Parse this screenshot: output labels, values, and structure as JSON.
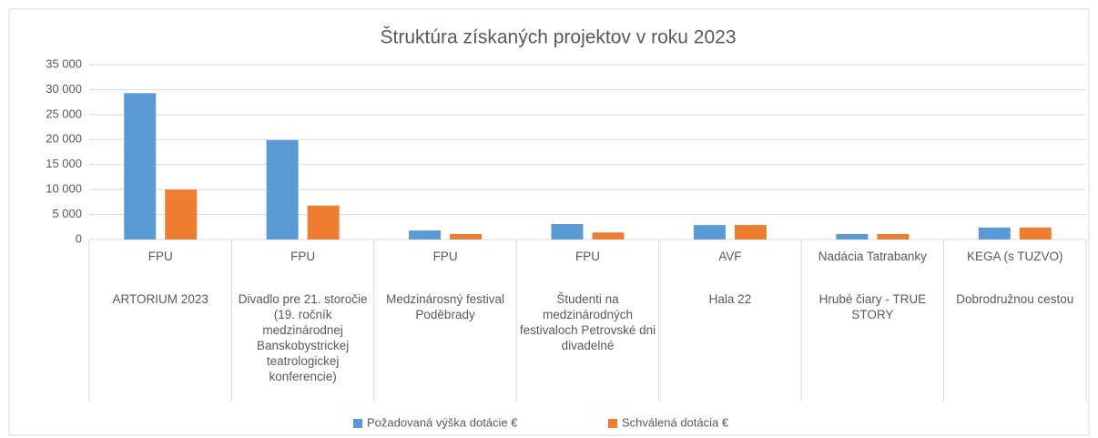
{
  "chart_data": {
    "type": "bar",
    "title": "Štruktúra získaných projektov v roku 2023",
    "groups": [
      "FPU",
      "FPU",
      "FPU",
      "FPU",
      "AVF",
      "Nadácia Tatrabanky",
      "KEGA (s TUZVO)"
    ],
    "categories": [
      "ARTORIUM 2023",
      "Divadlo pre 21. storočie (19. ročník medzinárodnej Banskobystrickej teatrologickej konferencie)",
      "Medzinárosný festival Poděbrady",
      "Študenti na medzinárodných festivaloch Petrovské dni divadelné",
      "Hala 22",
      "Hrubé čiary - TRUE STORY",
      "Dobrodružnou cestou"
    ],
    "series": [
      {
        "name": "Požadovaná výška dotácie €",
        "color": "#5b9bd5",
        "values": [
          29300,
          19900,
          1800,
          3100,
          2900,
          1100,
          2400
        ]
      },
      {
        "name": "Schválená dotácia €",
        "color": "#ed7d31",
        "values": [
          10000,
          6800,
          1100,
          1400,
          2900,
          1100,
          2400
        ]
      }
    ],
    "ylim": [
      0,
      35000
    ],
    "yticks": [
      0,
      {
        "value": 5000,
        "label": "5 000"
      },
      {
        "value": 10000,
        "label": "10 000"
      },
      {
        "value": 15000,
        "label": "15 000"
      },
      {
        "value": 20000,
        "label": "20 000"
      },
      {
        "value": 25000,
        "label": "25 000"
      },
      {
        "value": 30000,
        "label": "30 000"
      },
      {
        "value": 35000,
        "label": "35 000"
      }
    ],
    "grid": true,
    "legend": "bottom"
  }
}
